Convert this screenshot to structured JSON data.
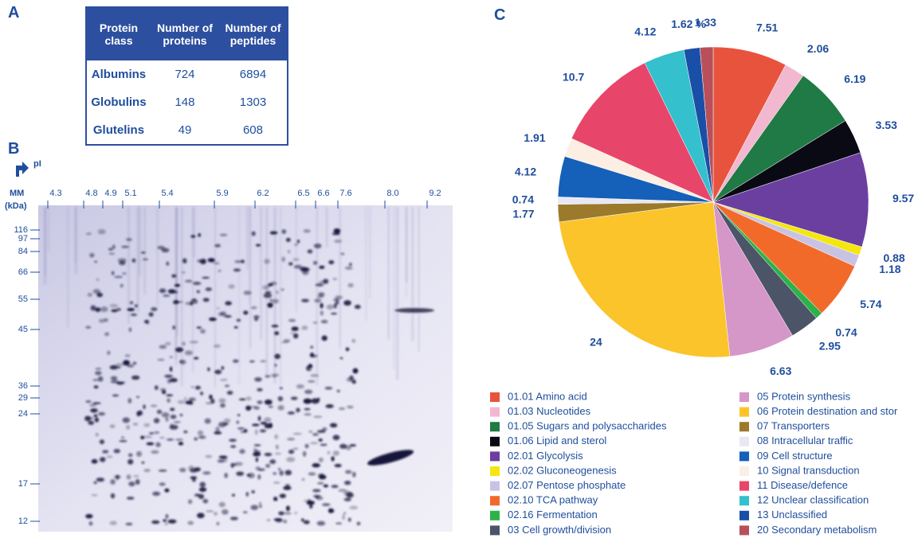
{
  "panel_labels": [
    "A",
    "B",
    "C"
  ],
  "table": {
    "header": [
      "Protein class",
      "Number of proteins",
      "Number of peptides"
    ],
    "rows": [
      [
        "Albumins",
        724,
        6894
      ],
      [
        "Globulins",
        148,
        1303
      ],
      [
        "Glutelins",
        49,
        608
      ]
    ]
  },
  "gel": {
    "x_axis_label": "pI",
    "y_axis_label": [
      "MM",
      "(kDa)"
    ],
    "pi_labels": [
      "4.3",
      "4.8",
      "4.9",
      "5.1",
      "5.4",
      "5.9",
      "6.2",
      "6.5",
      "6.6",
      "7.6",
      "8.0",
      "9.2"
    ],
    "mw_labels": [
      "116",
      "97",
      "84",
      "66",
      "55",
      "45",
      "36",
      "29",
      "24",
      "17",
      "12"
    ]
  },
  "chart_data": {
    "type": "pie",
    "categories": [
      "01.01 Amino acid",
      "01.03 Nucleotides",
      "01.05 Sugars and polysaccharides",
      "01.06 Lipid and sterol",
      "02.01 Glycolysis",
      "02.02 Gluconeogenesis",
      "02.07 Pentose phosphate",
      "02.10 TCA pathway",
      "02.16 Fermentation",
      "03 Cell growth/division",
      "05 Protein synthesis",
      "06 Protein destination and stor",
      "07 Transporters",
      "08 Intracellular traffic",
      "09 Cell structure",
      "10 Signal transduction",
      "11 Disease/defence",
      "12 Unclear classification",
      "13 Unclassified",
      "20 Secondary metabolism"
    ],
    "values": [
      7.51,
      2.06,
      6.19,
      3.53,
      9.57,
      0.88,
      1.18,
      5.74,
      0.74,
      2.95,
      6.63,
      24,
      1.77,
      0.74,
      4.12,
      1.91,
      10.7,
      4.12,
      1.62,
      1.33
    ],
    "value_labels": [
      "7.51",
      "2.06",
      "6.19",
      "3.53",
      "9.57",
      "0.88",
      "1.18",
      "5.74",
      "0.74",
      "2.95",
      "6.63",
      "24",
      "1.77",
      "0.74",
      "4.12",
      "1.91",
      "10.7",
      "4.12",
      "1.62 %",
      "1.33"
    ],
    "colors": [
      "#e8533d",
      "#f2b8d0",
      "#1f7a45",
      "#0a0a14",
      "#6b3fa0",
      "#f5e60f",
      "#c9c3e3",
      "#f26a2a",
      "#2bb34a",
      "#4c5468",
      "#d596c8",
      "#fbc42a",
      "#9c7a2c",
      "#e8e8f4",
      "#1560b8",
      "#fdeee4",
      "#e8456a",
      "#34c0cc",
      "#1a4fa8",
      "#b8505a"
    ]
  }
}
